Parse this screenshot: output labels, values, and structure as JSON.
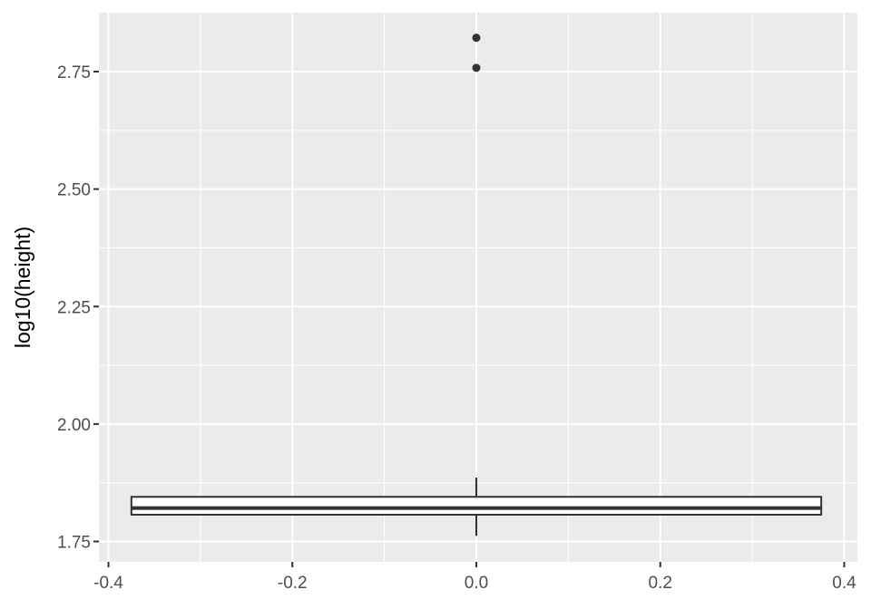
{
  "chart_data": {
    "type": "boxplot",
    "title": "",
    "xlabel": "",
    "ylabel": "log10(height)",
    "xlim": [
      -0.4,
      0.4
    ],
    "ylim": [
      1.75,
      2.82
    ],
    "x_ticks": [
      -0.4,
      -0.2,
      0.0,
      0.2,
      0.4
    ],
    "x_tick_labels": [
      "-0.4",
      "-0.2",
      "0.0",
      "0.2",
      "0.4"
    ],
    "y_ticks": [
      1.75,
      2.0,
      2.25,
      2.5,
      2.75
    ],
    "y_tick_labels": [
      "1.75",
      "2.00",
      "2.25",
      "2.50",
      "2.75"
    ],
    "grid": true,
    "legend": "none",
    "colors": {
      "panel_background": "#ebebeb",
      "grid": "#ffffff",
      "box_fill": "#ffffff",
      "box_stroke": "#333333",
      "outlier": "#333333"
    },
    "box": {
      "x": 0.0,
      "x_min": -0.375,
      "x_max": 0.375,
      "whisker_low": 1.762,
      "q1": 1.807,
      "median": 1.821,
      "q3": 1.845,
      "whisker_high": 1.886,
      "outliers": [
        2.758,
        2.822
      ]
    }
  }
}
